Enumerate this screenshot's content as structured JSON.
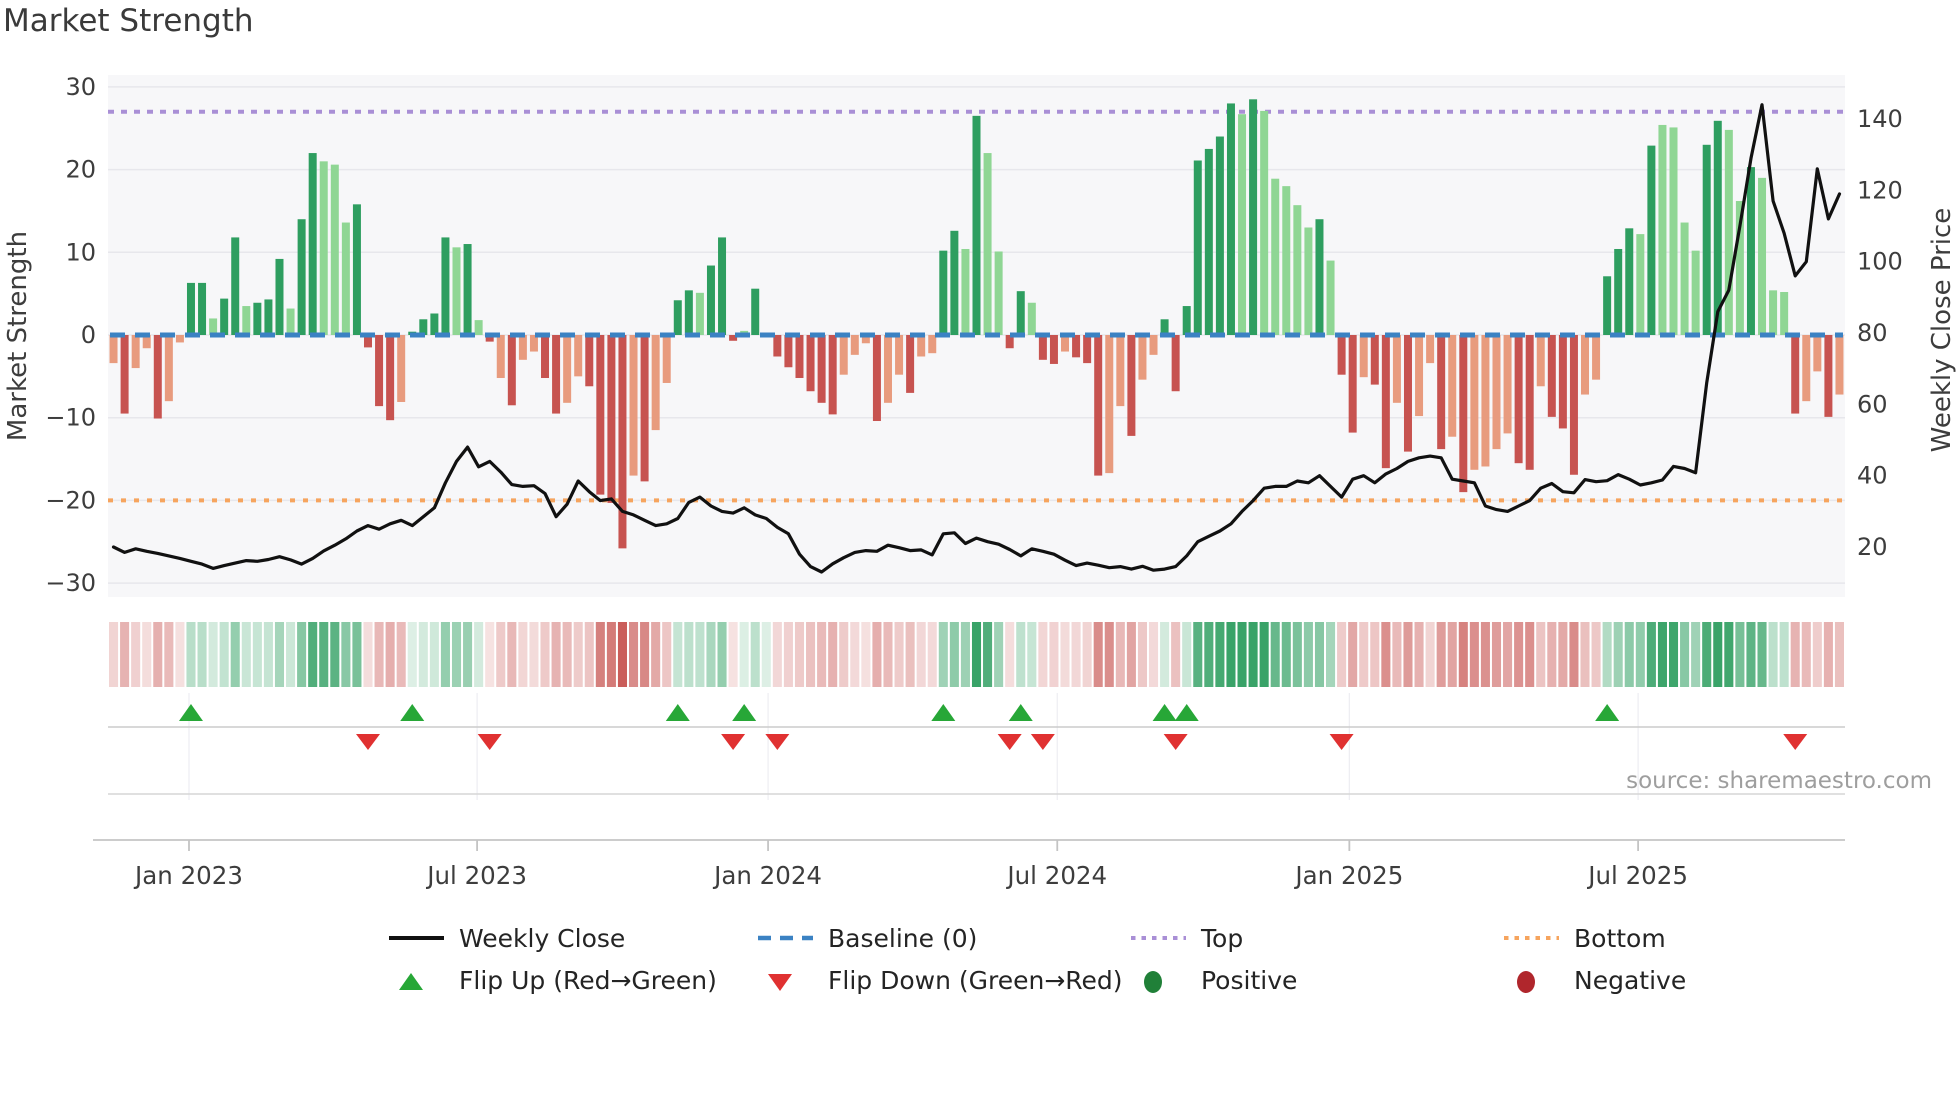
{
  "title": "Market Strength",
  "source": "source: sharemaestro.com",
  "left_axis": {
    "label": "Market Strength",
    "tick_values": [
      30,
      20,
      10,
      0,
      -10,
      -20,
      -30
    ],
    "tick_labels": [
      "30",
      "20",
      "10",
      "0",
      "−10",
      "−20",
      "−30"
    ]
  },
  "right_axis": {
    "label": "Weekly Close Price",
    "tick_values": [
      140,
      120,
      100,
      80,
      60,
      40,
      20
    ],
    "tick_labels": [
      "140",
      "120",
      "100",
      "80",
      "60",
      "40",
      "20"
    ]
  },
  "x_axis": {
    "tick_labels": [
      "Jan 2023",
      "Jul 2023",
      "Jan 2024",
      "Jul 2024",
      "Jan 2025",
      "Jul 2025"
    ],
    "tick_weeks": [
      7.32,
      33.36,
      59.66,
      85.8,
      112.2,
      138.3
    ]
  },
  "legend": {
    "items": [
      {
        "label": "Weekly Close",
        "swatch": "line-black"
      },
      {
        "label": "Baseline (0)",
        "swatch": "dashed-blue"
      },
      {
        "label": "Top",
        "swatch": "dotted-purple"
      },
      {
        "label": "Bottom",
        "swatch": "dotted-orange"
      },
      {
        "label": "Flip Up (Red→Green)",
        "swatch": "triangle-up-green"
      },
      {
        "label": "Flip Down (Green→Red)",
        "swatch": "triangle-down-red"
      },
      {
        "label": "Positive",
        "swatch": "circle-green"
      },
      {
        "label": "Negative",
        "swatch": "circle-darkred"
      }
    ]
  },
  "colors": {
    "positive_dark": "#2e9e60",
    "positive_light": "#8fd694",
    "negative_dark": "#c75350",
    "negative_light": "#e89b7e",
    "price_line": "#111111",
    "baseline": "#3b82c3",
    "top_line": "#a98fd6",
    "bottom_line": "#f6a45e",
    "flip_up": "#27a737",
    "flip_down": "#e03131",
    "positive_legend": "#208038",
    "negative_legend": "#b0262c",
    "plot_bg": "#f7f7f9",
    "grid": "#e7e7ec",
    "axis_line": "#c4c4c4",
    "tick_text": "#3d3d3d"
  },
  "chart_data": {
    "type": "bar+line",
    "title": "Market Strength",
    "weeks": 157,
    "ylabel_left": "Market Strength",
    "ylabel_right": "Weekly Close Price",
    "ylim_left": [
      -31.5,
      31.5
    ],
    "top_level": 27,
    "baseline_level": 0,
    "bottom_level": -20,
    "strength": [
      -3.4,
      -9.5,
      -4.0,
      -1.6,
      -10.1,
      -8.0,
      -0.9,
      6.3,
      6.3,
      2.0,
      4.4,
      11.8,
      3.5,
      3.9,
      4.3,
      9.2,
      3.2,
      14.0,
      22.0,
      21.0,
      20.6,
      13.6,
      15.8,
      -1.5,
      -8.6,
      -10.3,
      -8.1,
      0.4,
      1.9,
      2.6,
      11.8,
      10.6,
      11.0,
      1.8,
      -0.8,
      -5.2,
      -8.5,
      -3.0,
      -2.0,
      -5.2,
      -9.5,
      -8.2,
      -5.0,
      -6.2,
      -19.3,
      -20.3,
      -25.8,
      -17.0,
      -17.7,
      -11.5,
      -5.8,
      4.2,
      5.4,
      5.1,
      8.4,
      11.8,
      -0.7,
      0.5,
      5.6,
      0.3,
      -2.6,
      -3.9,
      -5.2,
      -6.8,
      -8.2,
      -9.6,
      -4.8,
      -2.4,
      -1.0,
      -10.4,
      -8.2,
      -4.8,
      -7.0,
      -2.6,
      -2.2,
      10.2,
      12.6,
      10.4,
      26.5,
      22.0,
      10.1,
      -1.6,
      5.3,
      3.9,
      -3.0,
      -3.5,
      -2.0,
      -2.7,
      -3.4,
      -17.0,
      -16.7,
      -8.6,
      -12.2,
      -5.4,
      -2.4,
      1.9,
      -6.8,
      3.5,
      21.1,
      22.5,
      24.0,
      28.0,
      26.7,
      28.5,
      27.1,
      18.9,
      18.0,
      15.7,
      13.0,
      14.0,
      9.0,
      -4.8,
      -11.8,
      -5.1,
      -6.0,
      -16.1,
      -8.2,
      -14.1,
      -9.8,
      -3.4,
      -13.8,
      -12.3,
      -19.0,
      -16.3,
      -15.9,
      -13.8,
      -11.9,
      -15.5,
      -16.3,
      -6.2,
      -9.9,
      -11.3,
      -16.9,
      -7.2,
      -5.4,
      7.1,
      10.4,
      12.9,
      12.2,
      22.9,
      25.4,
      25.1,
      13.6,
      10.2,
      23.0,
      25.9,
      24.8,
      16.2,
      20.3,
      19.0,
      5.4,
      5.2,
      -9.5,
      -8.0,
      -4.4,
      -9.9,
      -7.2
    ],
    "bar_shade": "ldlldllddlddldddlddlllddddlddddldldldlldd llddddldllddldddldlddddddllldlldllddldllddlddldddlldllddddd ddldllllldlddlddldlldldllllddldddlldddldllllddlldllldlldl",
    "price": [
      20.0,
      18.5,
      19.5,
      18.8,
      18.2,
      17.5,
      16.8,
      16.0,
      15.2,
      14.0,
      14.8,
      15.5,
      16.2,
      16.0,
      16.5,
      17.3,
      16.4,
      15.2,
      16.8,
      18.9,
      20.5,
      22.3,
      24.5,
      26.0,
      25.0,
      26.5,
      27.5,
      26.0,
      28.5,
      31.0,
      38.0,
      44.0,
      48.0,
      42.5,
      44.0,
      41.0,
      37.5,
      37.0,
      37.2,
      35.0,
      28.5,
      32.0,
      38.5,
      35.5,
      33.0,
      33.5,
      30.0,
      29.0,
      27.5,
      26.0,
      26.5,
      28.0,
      32.5,
      34.0,
      31.5,
      30.0,
      29.5,
      31.0,
      29.0,
      28.0,
      25.5,
      23.7,
      18.0,
      14.5,
      13.0,
      15.3,
      17.0,
      18.5,
      19.0,
      18.8,
      20.5,
      19.8,
      19.0,
      19.2,
      17.8,
      23.7,
      24.0,
      21.0,
      22.5,
      21.5,
      20.8,
      19.3,
      17.5,
      19.5,
      18.8,
      18.0,
      16.3,
      14.8,
      15.5,
      14.9,
      14.2,
      14.5,
      13.8,
      14.6,
      13.5,
      13.8,
      14.5,
      17.5,
      21.5,
      23.0,
      24.5,
      26.5,
      30.0,
      33.0,
      36.5,
      37.0,
      37.0,
      38.5,
      38.0,
      40.0,
      37.0,
      34.0,
      39.0,
      40.0,
      38.0,
      40.5,
      42.0,
      44.0,
      45.0,
      45.5,
      45.0,
      39.0,
      38.5,
      38.0,
      31.5,
      30.5,
      30.0,
      31.5,
      33.0,
      36.5,
      37.8,
      35.5,
      35.2,
      38.9,
      38.3,
      38.6,
      40.3,
      39.0,
      37.4,
      38.0,
      38.8,
      42.6,
      42.0,
      40.8,
      66.0,
      86.0,
      92.0,
      110.0,
      129.0,
      144.0,
      117.0,
      108.0,
      96.0,
      100.0,
      126.0,
      112.0,
      119.0
    ],
    "flip_up_weeks": [
      7,
      27,
      51,
      57,
      75,
      82,
      95,
      97,
      135
    ],
    "flip_down_weeks": [
      23,
      34,
      56,
      60,
      81,
      84,
      96,
      111,
      152
    ]
  }
}
